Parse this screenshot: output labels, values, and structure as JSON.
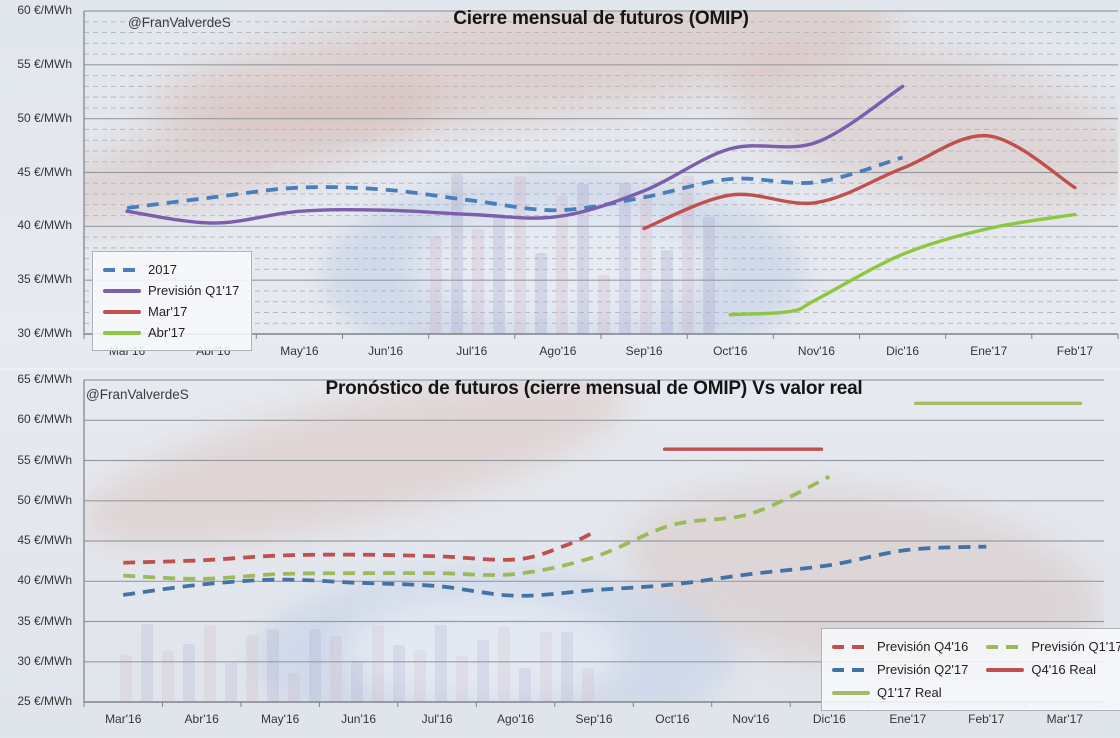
{
  "chart_data": [
    {
      "type": "line",
      "title": "Cierre mensual de futuros (OMIP)",
      "watermark": "@FranValverdeS",
      "y_unit": "€/MWh",
      "ylim": [
        30,
        60
      ],
      "ytick_step": 5,
      "ytick_labels": [
        "60 €/MWh",
        "55 €/MWh",
        "50 €/MWh",
        "45 €/MWh",
        "40 €/MWh",
        "35 €/MWh",
        "30 €/MWh"
      ],
      "ytick_values": [
        60,
        55,
        50,
        45,
        40,
        35,
        30
      ],
      "categories": [
        "Mar'16",
        "Abr'16",
        "May'16",
        "Jun'16",
        "Jul'16",
        "Ago'16",
        "Sep'16",
        "Oct'16",
        "Nov'16",
        "Dic'16",
        "Ene'17",
        "Feb'17"
      ],
      "grid": {
        "major": true,
        "minor_dashed": true
      },
      "legend_position": "bottom-left",
      "legend_columns": 1,
      "series": [
        {
          "name": "2017",
          "color": "#4a7ebb",
          "style": "dashed",
          "points": [
            [
              0,
              41.7
            ],
            [
              1,
              42.7
            ],
            [
              2,
              43.6
            ],
            [
              3,
              43.4
            ],
            [
              4,
              42.4
            ],
            [
              5,
              41.5
            ],
            [
              6,
              42.7
            ],
            [
              7,
              44.4
            ],
            [
              8,
              44.1
            ],
            [
              9,
              46.4
            ]
          ]
        },
        {
          "name": "Previsión Q1'17",
          "color": "#7b5ead",
          "style": "solid",
          "points": [
            [
              0,
              41.4
            ],
            [
              1,
              40.3
            ],
            [
              2,
              41.4
            ],
            [
              3,
              41.5
            ],
            [
              4,
              41.1
            ],
            [
              5,
              40.9
            ],
            [
              6,
              43.3
            ],
            [
              7,
              47.2
            ],
            [
              8,
              47.8
            ],
            [
              9,
              53.0
            ]
          ]
        },
        {
          "name": "Mar'17",
          "color": "#c0504d",
          "style": "solid",
          "points": [
            [
              6,
              39.8
            ],
            [
              7,
              42.9
            ],
            [
              8,
              42.2
            ],
            [
              9,
              45.4
            ],
            [
              10,
              48.4
            ],
            [
              11,
              43.6
            ]
          ]
        },
        {
          "name": "Abr'17",
          "color": "#8dc63f",
          "style": "solid",
          "points": [
            [
              7,
              31.8
            ],
            [
              7.7,
              32.1
            ],
            [
              8,
              33.2
            ],
            [
              9,
              37.4
            ],
            [
              10,
              39.8
            ],
            [
              11,
              41.1
            ]
          ]
        }
      ]
    },
    {
      "type": "line",
      "title": "Pronóstico de futuros (cierre mensual de OMIP) Vs valor real",
      "watermark": "@FranValverdeS",
      "y_unit": "€/MWh",
      "ylim": [
        25,
        65
      ],
      "ytick_step": 5,
      "ytick_labels": [
        "65 €/MWh",
        "60 €/MWh",
        "55 €/MWh",
        "50 €/MWh",
        "45 €/MWh",
        "40 €/MWh",
        "35 €/MWh",
        "30 €/MWh",
        "25 €/MWh"
      ],
      "ytick_values": [
        65,
        60,
        55,
        50,
        45,
        40,
        35,
        30,
        25
      ],
      "categories": [
        "Mar'16",
        "Abr'16",
        "May'16",
        "Jun'16",
        "Jul'16",
        "Ago'16",
        "Sep'16",
        "Oct'16",
        "Nov'16",
        "Dic'16",
        "Ene'17",
        "Feb'17",
        "Mar'17"
      ],
      "grid": {
        "major": true,
        "minor_dashed": false
      },
      "legend_position": "bottom-right",
      "legend_columns": 2,
      "series": [
        {
          "name": "Previsión Q4'16",
          "color": "#c0504d",
          "style": "dashed",
          "points": [
            [
              0,
              42.3
            ],
            [
              1,
              42.6
            ],
            [
              2,
              43.2
            ],
            [
              3,
              43.3
            ],
            [
              4,
              43.1
            ],
            [
              5,
              42.7
            ],
            [
              5.6,
              44.3
            ],
            [
              6,
              46.1
            ]
          ]
        },
        {
          "name": "Previsión Q1'17",
          "color": "#9bbb59",
          "style": "dashed",
          "points": [
            [
              0,
              40.7
            ],
            [
              1,
              40.3
            ],
            [
              2,
              40.9
            ],
            [
              3,
              41.0
            ],
            [
              4,
              41.0
            ],
            [
              5,
              40.9
            ],
            [
              6,
              43.0
            ],
            [
              7,
              47.0
            ],
            [
              8,
              48.4
            ],
            [
              9,
              53.0
            ]
          ]
        },
        {
          "name": "Previsión Q2'17",
          "color": "#4472a4",
          "style": "dashed",
          "points": [
            [
              0,
              38.3
            ],
            [
              1,
              39.6
            ],
            [
              2,
              40.2
            ],
            [
              3,
              39.8
            ],
            [
              4,
              39.4
            ],
            [
              5,
              38.2
            ],
            [
              6,
              38.9
            ],
            [
              7,
              39.6
            ],
            [
              8,
              40.9
            ],
            [
              9,
              42.0
            ],
            [
              10,
              43.9
            ],
            [
              11,
              44.3
            ]
          ]
        },
        {
          "name": "Q4'16 Real",
          "color": "#c0504d",
          "style": "solid",
          "points": [
            [
              6.9,
              56.4
            ],
            [
              8.9,
              56.4
            ]
          ]
        },
        {
          "name": "Q1'17 Real",
          "color": "#a3bd67",
          "style": "solid",
          "points": [
            [
              10.1,
              62.1
            ],
            [
              12.2,
              62.1
            ]
          ]
        }
      ]
    }
  ]
}
